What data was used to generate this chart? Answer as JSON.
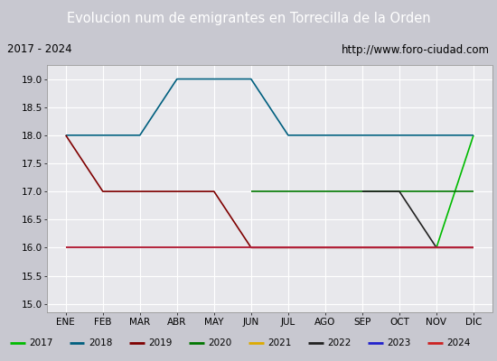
{
  "title": "Evolucion num de emigrantes en Torrecilla de la Orden",
  "subtitle_left": "2017 - 2024",
  "subtitle_right": "http://www.foro-ciudad.com",
  "months": [
    "ENE",
    "FEB",
    "MAR",
    "ABR",
    "MAY",
    "JUN",
    "JUL",
    "AGO",
    "SEP",
    "OCT",
    "NOV",
    "DIC"
  ],
  "ylim": [
    14.85,
    19.25
  ],
  "yticks": [
    15.0,
    15.5,
    16.0,
    16.5,
    17.0,
    17.5,
    18.0,
    18.5,
    19.0
  ],
  "series": {
    "2017": {
      "color": "#00bb00",
      "data": [
        null,
        null,
        null,
        null,
        null,
        null,
        null,
        null,
        null,
        null,
        16.0,
        18.0
      ]
    },
    "2018": {
      "color": "#005f7f",
      "data": [
        18.0,
        18.0,
        18.0,
        19.0,
        19.0,
        19.0,
        18.0,
        18.0,
        18.0,
        18.0,
        18.0,
        18.0
      ]
    },
    "2019": {
      "color": "#7f0000",
      "data": [
        18.0,
        17.0,
        17.0,
        17.0,
        17.0,
        16.0,
        16.0,
        16.0,
        16.0,
        16.0,
        16.0,
        16.0
      ]
    },
    "2020": {
      "color": "#007700",
      "data": [
        null,
        null,
        null,
        null,
        null,
        17.0,
        17.0,
        17.0,
        17.0,
        17.0,
        17.0,
        17.0
      ]
    },
    "2021": {
      "color": "#ddaa00",
      "data": [
        null,
        null,
        null,
        null,
        null,
        null,
        null,
        null,
        null,
        null,
        null,
        null
      ]
    },
    "2022": {
      "color": "#222222",
      "data": [
        null,
        null,
        null,
        null,
        null,
        null,
        null,
        null,
        17.0,
        17.0,
        16.0,
        null
      ]
    },
    "2023": {
      "color": "#2222cc",
      "data": [
        16.0,
        16.0,
        16.0,
        16.0,
        16.0,
        16.0,
        16.0,
        16.0,
        16.0,
        16.0,
        16.0,
        16.0
      ]
    },
    "2024": {
      "color": "#cc2222",
      "data": [
        16.0,
        16.0,
        16.0,
        16.0,
        16.0,
        16.0,
        16.0,
        16.0,
        16.0,
        16.0,
        16.0,
        16.0
      ]
    }
  },
  "title_color": "#ffffff",
  "title_bg": "#4472c4",
  "box_bg": "#ffffff",
  "plot_bg": "#e8e8ec",
  "grid_color": "#ffffff",
  "border_color": "#4472c4",
  "fig_bg": "#c8c8d0"
}
